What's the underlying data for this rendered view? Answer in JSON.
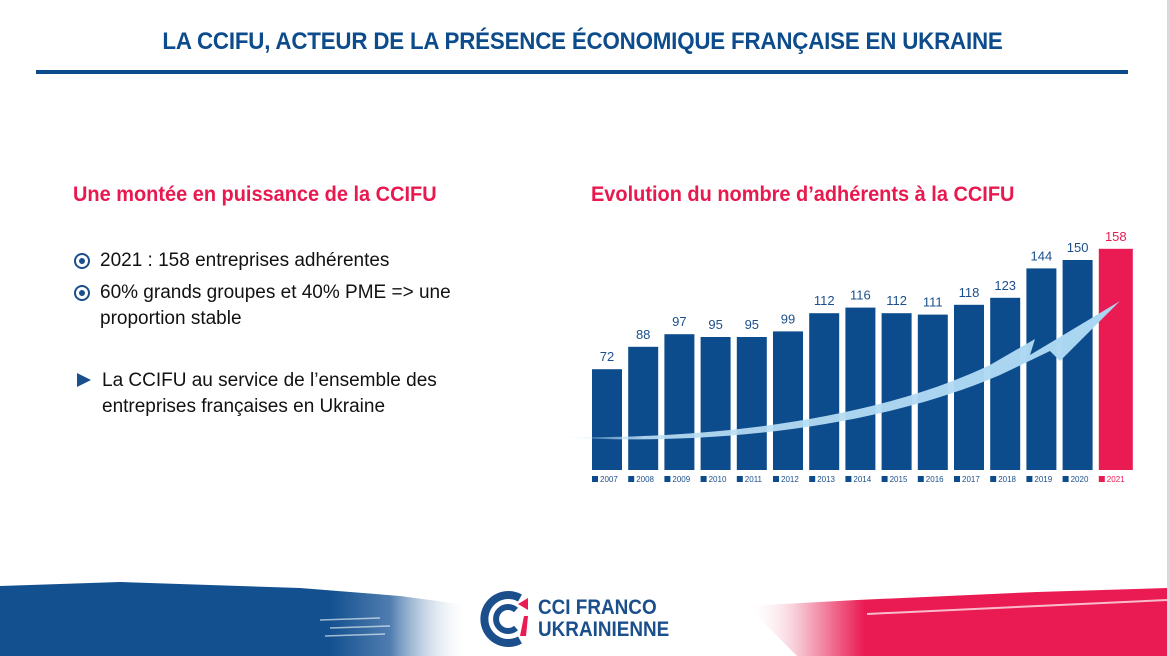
{
  "header": {
    "title": "LA CCIFU, ACTEUR DE LA PRÉSENCE ÉCONOMIQUE FRANÇAISE EN UKRAINE"
  },
  "left": {
    "heading": "Une montée en puissance de la CCIFU",
    "bullets": [
      {
        "icon": "radio-bullet-icon",
        "text": "2021 : 158 entreprises adhérentes"
      },
      {
        "icon": "radio-bullet-icon",
        "text": "60% grands groupes et 40% PME => une proportion stable"
      }
    ],
    "arrow_item": {
      "icon": "triangle-right-icon",
      "text": "La CCIFU au service de l’ensemble des entreprises françaises en Ukraine"
    }
  },
  "chart_heading": "Evolution du nombre d’adhérents à la CCIFU",
  "chart_data": {
    "type": "bar",
    "title": "Evolution du nombre d’adhérents à la CCIFU",
    "xlabel": "",
    "ylabel": "",
    "categories": [
      "2007",
      "2008",
      "2009",
      "2010",
      "2011",
      "2012",
      "2013",
      "2014",
      "2015",
      "2016",
      "2017",
      "2018",
      "2019",
      "2020",
      "2021"
    ],
    "values": [
      72,
      88,
      97,
      95,
      95,
      99,
      112,
      116,
      112,
      111,
      118,
      123,
      144,
      150,
      158
    ],
    "highlight_index": 14,
    "ylim": [
      0,
      160
    ],
    "grid": false,
    "legend": "bottom",
    "annotation": "trend-arrow",
    "colors": {
      "bar": "#0d4c8c",
      "highlight": "#ea1a52",
      "arrow": "#bde0f5"
    }
  },
  "footer": {
    "logo_line1": "CCI FRANCO",
    "logo_line2": "UKRAINIENNE",
    "colors": {
      "blue": "#13508f",
      "red": "#ea1a52"
    }
  }
}
